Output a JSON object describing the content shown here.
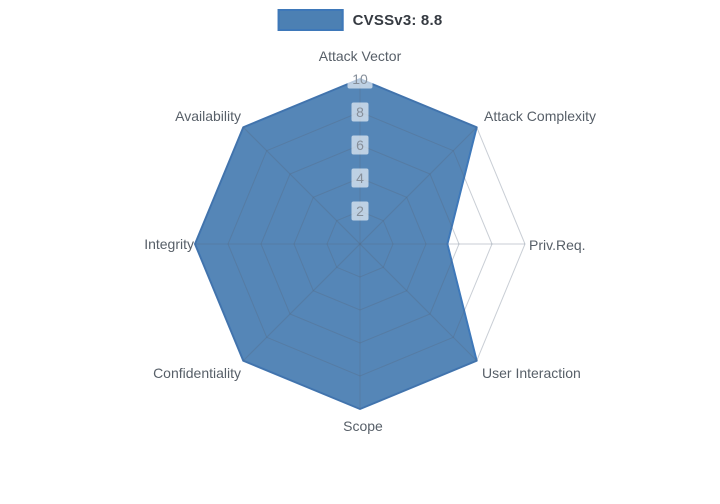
{
  "legend": {
    "items": [
      {
        "label": "CVSSv3: 8.8",
        "swatch_fill": "#4C80B3",
        "swatch_border": "#3E78B9"
      }
    ]
  },
  "chart_data": {
    "type": "radar",
    "title": "CVSSv3: 8.8",
    "axes": [
      "Attack Vector",
      "Attack Complexity",
      "Priv.Req.",
      "User Interaction",
      "Scope",
      "Confidentiality",
      "Integrity",
      "Availability"
    ],
    "series": [
      {
        "name": "CVSSv3: 8.8",
        "values": [
          10,
          10,
          5.3,
          10,
          10,
          10,
          10,
          10
        ],
        "fill": "#4C80B3",
        "fill_opacity": 0.95,
        "border": "#3E78B9",
        "border_width": 2
      }
    ],
    "radial_axis": {
      "ticks": [
        2,
        4,
        6,
        8,
        10
      ],
      "min": 0,
      "max": 10,
      "tick_label_color": "#868F9A",
      "tick_label_bg": "rgba(255,255,255,0.62)"
    },
    "grid": {
      "shape": "polygon-web",
      "rings": 5,
      "color": "rgba(88,103,124,0.32)"
    },
    "axis_label_color": "#575F68",
    "legend_position": "top-center",
    "background": "#FFFFFF"
  }
}
